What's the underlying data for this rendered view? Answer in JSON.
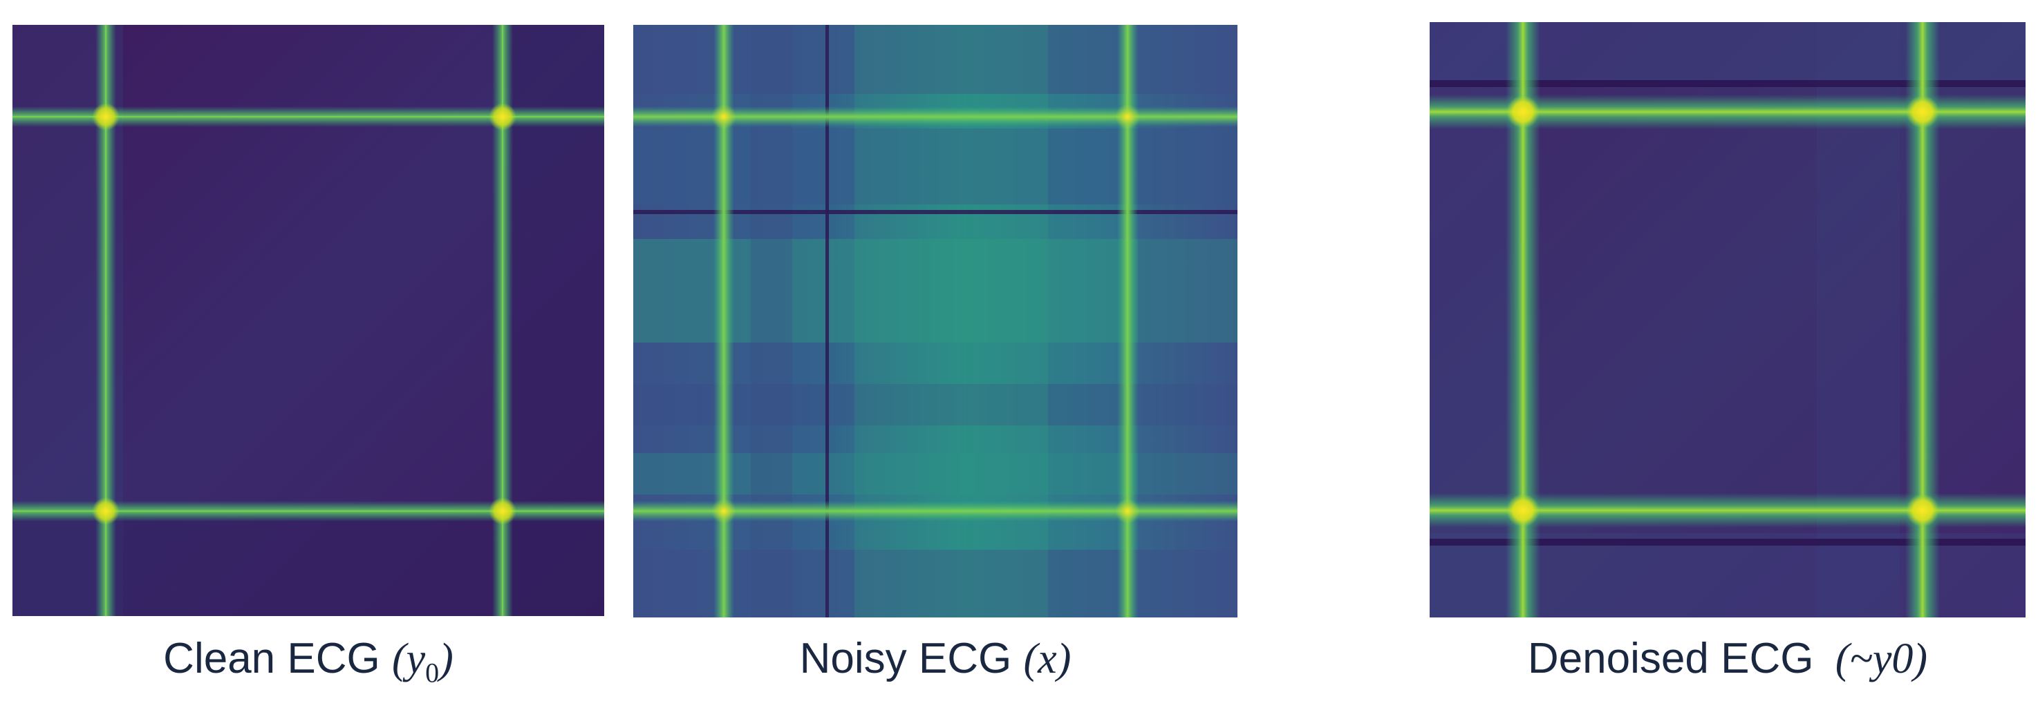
{
  "panels": [
    {
      "id": "clean",
      "caption_text": "Clean ECG",
      "caption_math_open": "(",
      "caption_math_var": "y",
      "caption_math_sub": "0",
      "caption_math_close": ")"
    },
    {
      "id": "noisy",
      "caption_text": "Noisy ECG",
      "caption_math_open": "(",
      "caption_math_var": "x",
      "caption_math_sub": "",
      "caption_math_close": ")"
    },
    {
      "id": "denoised",
      "caption_text": "Denoised ECG",
      "caption_math_open": "(~",
      "caption_math_var": "y0",
      "caption_math_sub": "",
      "caption_math_close": ")"
    }
  ],
  "colors": {
    "base_dark": "#440154",
    "base_purple": "#3b2f6f",
    "teal": "#2a788e",
    "green": "#35b779",
    "yellow": "#fde725",
    "caption": "#1a2740"
  }
}
